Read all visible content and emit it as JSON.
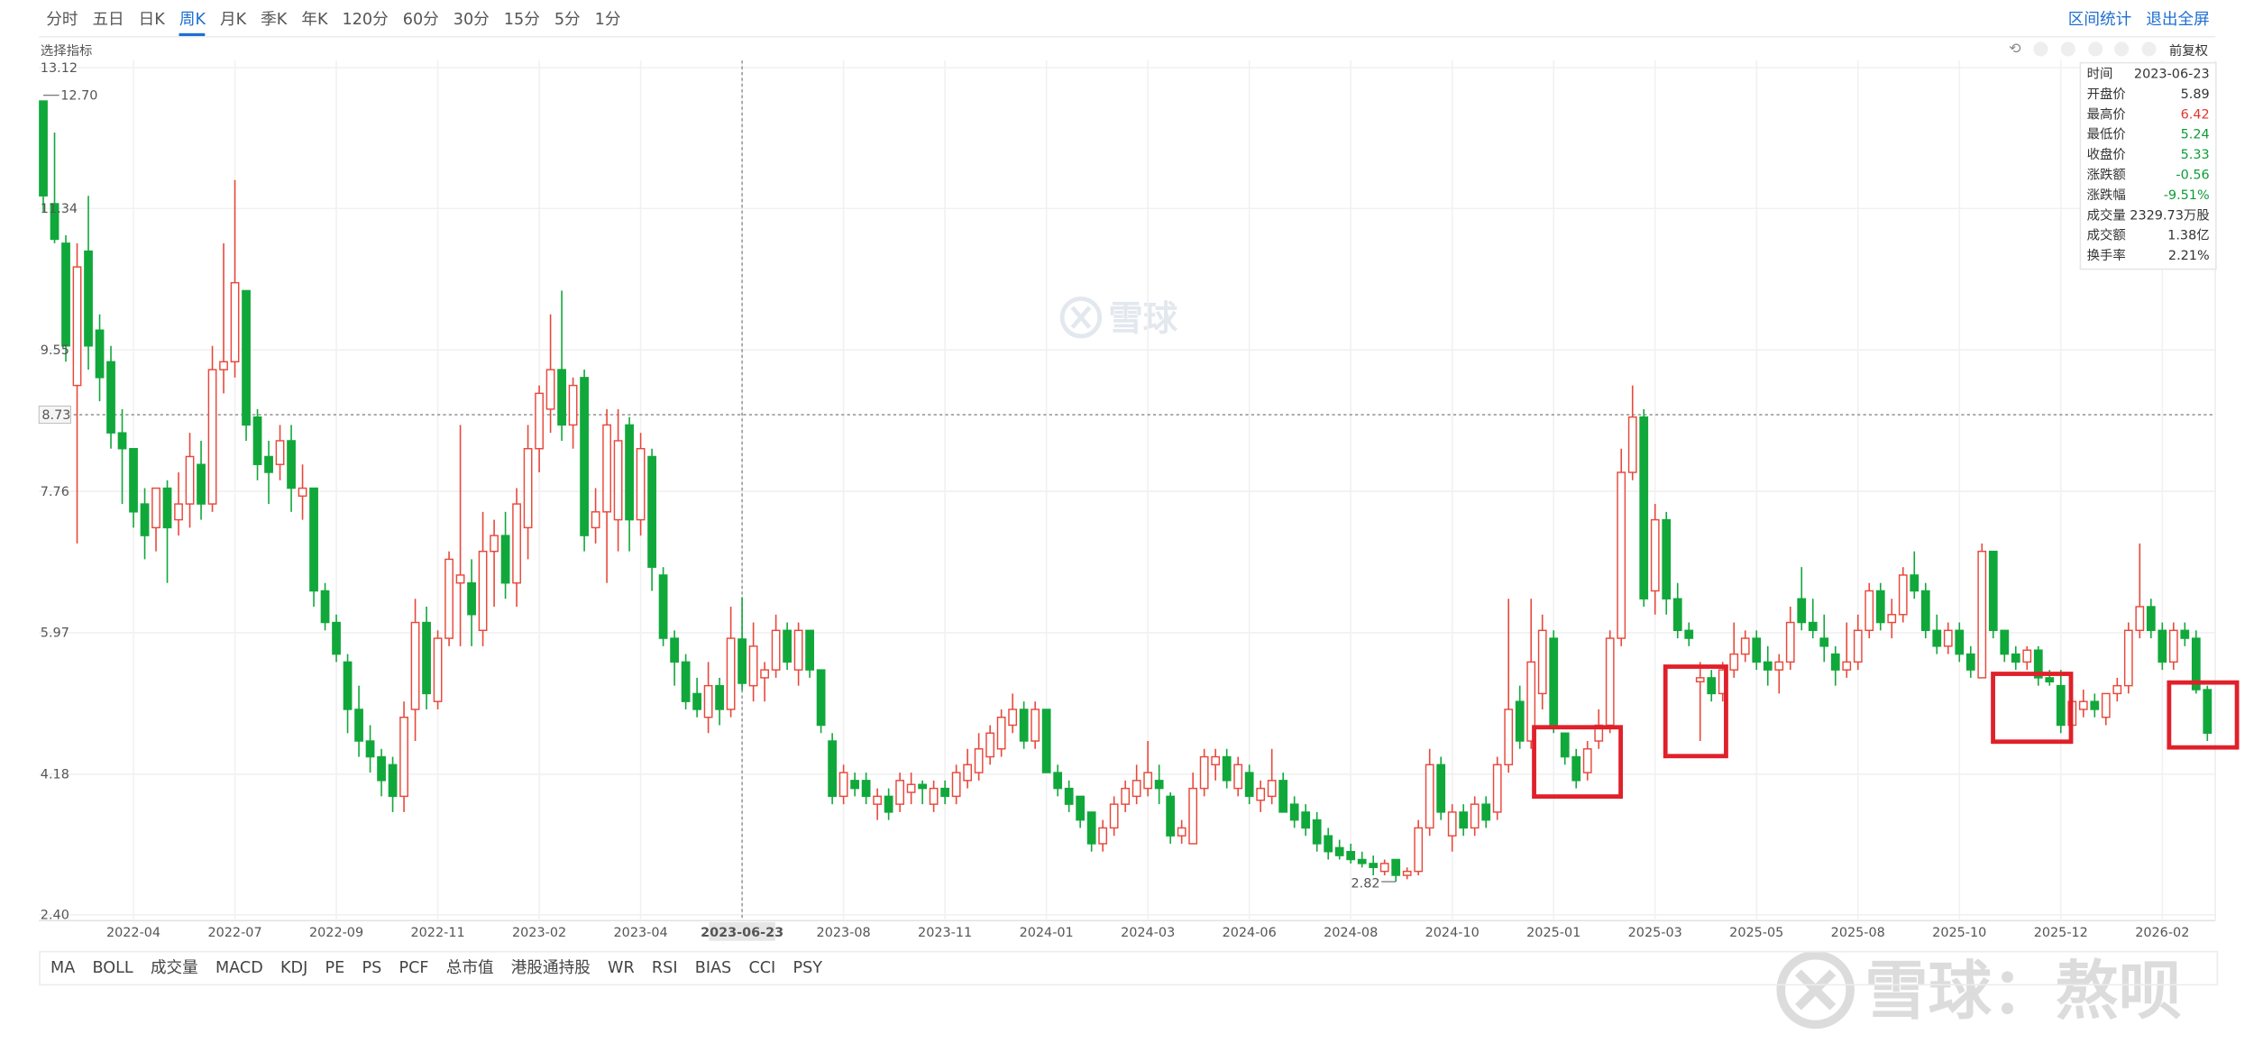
{
  "toolbar": {
    "tabs": [
      "分时",
      "五日",
      "日K",
      "周K",
      "月K",
      "季K",
      "年K",
      "120分",
      "60分",
      "30分",
      "15分",
      "5分",
      "1分"
    ],
    "active_tab": "周K",
    "actions": [
      "区间统计",
      "退出全屏"
    ]
  },
  "indicator_select": "选择指标",
  "adjust_mode": "前复权",
  "indicator_tabs": [
    "MA",
    "BOLL",
    "成交量",
    "MACD",
    "KDJ",
    "PE",
    "PS",
    "PCF",
    "总市值",
    "港股通持股",
    "WR",
    "RSI",
    "BIAS",
    "CCI",
    "PSY"
  ],
  "info_panel": {
    "rows": [
      {
        "label": "时间",
        "value": "2023-06-23",
        "color": "#333333"
      },
      {
        "label": "开盘价",
        "value": 5.89,
        "color": "#333333"
      },
      {
        "label": "最高价",
        "value": 6.42,
        "color": "#e0362b"
      },
      {
        "label": "最低价",
        "value": 5.24,
        "color": "#0d9b36"
      },
      {
        "label": "收盘价",
        "value": 5.33,
        "color": "#0d9b36"
      },
      {
        "label": "涨跌额",
        "value": -0.56,
        "color": "#0d9b36"
      },
      {
        "label": "涨跌幅",
        "value": "-9.51%",
        "color": "#0d9b36"
      },
      {
        "label": "成交量",
        "value": "2329.73万股",
        "color": "#333333"
      },
      {
        "label": "成交额",
        "value": "1.38亿",
        "color": "#333333"
      },
      {
        "label": "换手率",
        "value": "2.21%",
        "color": "#333333"
      }
    ]
  },
  "watermarks": [
    "雪球",
    "雪球：熬呗"
  ],
  "chart_data": {
    "type": "candlestick",
    "up_color": "#e8483b",
    "down_color": "#11a83b",
    "grid": true,
    "ylim": [
      2.4,
      13.12
    ],
    "yticks": [
      {
        "value": 2.4,
        "label": "2.40"
      },
      4.18,
      5.97,
      7.76,
      9.55,
      11.34,
      13.12
    ],
    "crosshair_y": 8.73,
    "annotations": [
      {
        "value": 12.7,
        "label": "12.70"
      },
      {
        "value": 2.82,
        "label": "2.82"
      }
    ],
    "categories": [
      null,
      null,
      null,
      null,
      null,
      null,
      null,
      null,
      "2022-04",
      null,
      null,
      null,
      null,
      null,
      null,
      null,
      null,
      "2022-07",
      null,
      null,
      null,
      null,
      null,
      null,
      null,
      null,
      "2022-09",
      null,
      null,
      null,
      null,
      null,
      null,
      null,
      null,
      "2022-11",
      null,
      null,
      null,
      null,
      null,
      null,
      null,
      null,
      "2023-02",
      null,
      null,
      null,
      null,
      null,
      null,
      null,
      null,
      "2023-04",
      null,
      null,
      null,
      null,
      null,
      null,
      null,
      null,
      "2023-06-23",
      null,
      null,
      null,
      null,
      null,
      null,
      null,
      null,
      "2023-08",
      null,
      null,
      null,
      null,
      null,
      null,
      null,
      null,
      "2023-11",
      null,
      null,
      null,
      null,
      null,
      null,
      null,
      null,
      "2024-01",
      null,
      null,
      null,
      null,
      null,
      null,
      null,
      null,
      "2024-03",
      null,
      null,
      null,
      null,
      null,
      null,
      null,
      null,
      "2024-06",
      null,
      null,
      null,
      null,
      null,
      null,
      null,
      null,
      "2024-08",
      null,
      null,
      null,
      null,
      null,
      null,
      null,
      null,
      "2024-10",
      null,
      null,
      null,
      null,
      null,
      null,
      null,
      null,
      "2025-01",
      null,
      null,
      null,
      null,
      null,
      null,
      null,
      null,
      "2025-03",
      null,
      null,
      null,
      null,
      null,
      null,
      null,
      null,
      "2025-05",
      null,
      null,
      null,
      null,
      null,
      null,
      null,
      null,
      "2025-08",
      null,
      null,
      null,
      null,
      null,
      null,
      null,
      null,
      "2025-10",
      null,
      null,
      null,
      null,
      null,
      null,
      null,
      null,
      "2025-12",
      null,
      null,
      null,
      null,
      null,
      null,
      null,
      null,
      "2026-02",
      null,
      null,
      null,
      null
    ],
    "ohlc": [
      [
        12.7,
        12.7,
        11.3,
        11.5
      ],
      [
        11.4,
        12.3,
        10.9,
        10.95
      ],
      [
        10.9,
        11.0,
        9.4,
        9.6
      ],
      [
        9.1,
        10.9,
        7.1,
        10.6
      ],
      [
        10.8,
        11.5,
        9.3,
        9.6
      ],
      [
        9.8,
        10.0,
        8.9,
        9.2
      ],
      [
        9.4,
        9.6,
        8.3,
        8.5
      ],
      [
        8.5,
        8.8,
        7.6,
        8.3
      ],
      [
        8.3,
        8.3,
        7.3,
        7.5
      ],
      [
        7.6,
        7.8,
        6.9,
        7.2
      ],
      [
        7.3,
        7.8,
        7.0,
        7.8
      ],
      [
        7.8,
        7.9,
        6.6,
        7.3
      ],
      [
        7.4,
        8.0,
        7.2,
        7.6
      ],
      [
        7.6,
        8.5,
        7.3,
        8.2
      ],
      [
        8.1,
        8.4,
        7.4,
        7.6
      ],
      [
        7.6,
        9.6,
        7.5,
        9.3
      ],
      [
        9.3,
        10.9,
        9.0,
        9.4
      ],
      [
        9.4,
        11.7,
        9.2,
        10.4
      ],
      [
        10.3,
        10.3,
        8.4,
        8.6
      ],
      [
        8.7,
        8.8,
        7.9,
        8.1
      ],
      [
        8.2,
        8.4,
        7.6,
        8.0
      ],
      [
        8.1,
        8.6,
        7.9,
        8.4
      ],
      [
        8.4,
        8.6,
        7.5,
        7.8
      ],
      [
        7.7,
        8.1,
        7.4,
        7.8
      ],
      [
        7.8,
        7.8,
        6.3,
        6.5
      ],
      [
        6.5,
        6.6,
        6.0,
        6.1
      ],
      [
        6.1,
        6.2,
        5.6,
        5.7
      ],
      [
        5.6,
        5.7,
        4.7,
        5.0
      ],
      [
        5.0,
        5.3,
        4.4,
        4.6
      ],
      [
        4.6,
        4.8,
        4.2,
        4.4
      ],
      [
        4.4,
        4.5,
        3.9,
        4.1
      ],
      [
        4.3,
        4.4,
        3.7,
        3.9
      ],
      [
        3.9,
        5.1,
        3.7,
        4.9
      ],
      [
        5.0,
        6.4,
        4.6,
        6.1
      ],
      [
        6.1,
        6.3,
        5.0,
        5.2
      ],
      [
        5.1,
        6.0,
        5.0,
        5.9
      ],
      [
        5.9,
        7.0,
        5.8,
        6.9
      ],
      [
        6.6,
        8.6,
        5.8,
        6.7
      ],
      [
        6.6,
        6.9,
        5.8,
        6.2
      ],
      [
        6.0,
        7.5,
        5.8,
        7.0
      ],
      [
        7.0,
        7.4,
        6.3,
        7.2
      ],
      [
        7.2,
        7.5,
        6.4,
        6.6
      ],
      [
        6.6,
        7.8,
        6.3,
        7.6
      ],
      [
        7.3,
        8.6,
        6.9,
        8.3
      ],
      [
        8.3,
        9.1,
        8.0,
        9.0
      ],
      [
        8.8,
        10.0,
        8.5,
        9.3
      ],
      [
        9.3,
        10.3,
        8.4,
        8.6
      ],
      [
        8.6,
        9.2,
        8.3,
        9.1
      ],
      [
        9.2,
        9.3,
        7.0,
        7.2
      ],
      [
        7.3,
        7.8,
        7.1,
        7.5
      ],
      [
        7.5,
        8.8,
        6.6,
        8.6
      ],
      [
        7.4,
        8.8,
        7.0,
        8.4
      ],
      [
        8.6,
        8.7,
        7.0,
        7.4
      ],
      [
        7.4,
        8.5,
        7.2,
        8.3
      ],
      [
        8.2,
        8.3,
        6.5,
        6.8
      ],
      [
        6.7,
        6.8,
        5.8,
        5.9
      ],
      [
        5.9,
        6.0,
        5.3,
        5.6
      ],
      [
        5.6,
        5.7,
        5.0,
        5.1
      ],
      [
        5.2,
        5.4,
        4.9,
        5.0
      ],
      [
        4.9,
        5.6,
        4.7,
        5.3
      ],
      [
        5.3,
        5.4,
        4.8,
        5.0
      ],
      [
        5.0,
        6.3,
        4.9,
        5.9
      ],
      [
        5.89,
        6.42,
        5.24,
        5.33
      ],
      [
        5.3,
        6.1,
        5.1,
        5.8
      ],
      [
        5.4,
        5.6,
        5.1,
        5.5
      ],
      [
        5.5,
        6.2,
        5.4,
        6.0
      ],
      [
        6.0,
        6.1,
        5.5,
        5.6
      ],
      [
        5.5,
        6.1,
        5.3,
        6.0
      ],
      [
        6.0,
        6.0,
        5.4,
        5.5
      ],
      [
        5.5,
        5.5,
        4.7,
        4.8
      ],
      [
        4.6,
        4.7,
        3.8,
        3.9
      ],
      [
        3.9,
        4.3,
        3.8,
        4.2
      ],
      [
        4.1,
        4.2,
        3.9,
        4.0
      ],
      [
        4.1,
        4.2,
        3.8,
        3.9
      ],
      [
        3.8,
        4.0,
        3.6,
        3.9
      ],
      [
        3.9,
        4.0,
        3.6,
        3.7
      ],
      [
        3.8,
        4.2,
        3.7,
        4.1
      ],
      [
        3.95,
        4.2,
        3.8,
        4.05
      ],
      [
        4.05,
        4.1,
        3.8,
        4.0
      ],
      [
        3.8,
        4.1,
        3.7,
        4.0
      ],
      [
        4.0,
        4.1,
        3.8,
        3.9
      ],
      [
        3.9,
        4.3,
        3.8,
        4.2
      ],
      [
        4.1,
        4.5,
        4.0,
        4.3
      ],
      [
        4.2,
        4.7,
        4.1,
        4.5
      ],
      [
        4.4,
        4.8,
        4.3,
        4.7
      ],
      [
        4.5,
        5.0,
        4.4,
        4.9
      ],
      [
        4.8,
        5.2,
        4.7,
        5.0
      ],
      [
        5.0,
        5.1,
        4.5,
        4.6
      ],
      [
        4.6,
        5.1,
        4.5,
        5.0
      ],
      [
        5.0,
        5.0,
        4.2,
        4.2
      ],
      [
        4.2,
        4.3,
        3.9,
        4.0
      ],
      [
        4.0,
        4.1,
        3.7,
        3.8
      ],
      [
        3.9,
        3.9,
        3.5,
        3.6
      ],
      [
        3.7,
        3.7,
        3.2,
        3.3
      ],
      [
        3.3,
        3.6,
        3.2,
        3.5
      ],
      [
        3.5,
        3.9,
        3.4,
        3.8
      ],
      [
        3.8,
        4.1,
        3.7,
        4.0
      ],
      [
        3.9,
        4.3,
        3.8,
        4.1
      ],
      [
        4.0,
        4.6,
        3.9,
        4.2
      ],
      [
        4.1,
        4.3,
        3.8,
        4.0
      ],
      [
        3.9,
        3.95,
        3.3,
        3.4
      ],
      [
        3.4,
        3.6,
        3.3,
        3.5
      ],
      [
        3.3,
        4.2,
        3.3,
        4.0
      ],
      [
        4.0,
        4.5,
        3.9,
        4.4
      ],
      [
        4.3,
        4.5,
        4.1,
        4.4
      ],
      [
        4.4,
        4.5,
        4.0,
        4.1
      ],
      [
        4.0,
        4.4,
        3.9,
        4.3
      ],
      [
        4.2,
        4.3,
        3.8,
        3.9
      ],
      [
        3.85,
        4.1,
        3.7,
        4.0
      ],
      [
        3.9,
        4.5,
        3.8,
        4.1
      ],
      [
        4.1,
        4.2,
        3.7,
        3.7
      ],
      [
        3.8,
        3.9,
        3.5,
        3.6
      ],
      [
        3.7,
        3.8,
        3.4,
        3.5
      ],
      [
        3.6,
        3.7,
        3.2,
        3.3
      ],
      [
        3.4,
        3.5,
        3.1,
        3.2
      ],
      [
        3.25,
        3.35,
        3.1,
        3.15
      ],
      [
        3.2,
        3.3,
        3.05,
        3.1
      ],
      [
        3.1,
        3.2,
        3.0,
        3.05
      ],
      [
        3.05,
        3.15,
        2.9,
        3.0
      ],
      [
        2.95,
        3.1,
        2.9,
        3.05
      ],
      [
        3.1,
        3.1,
        2.82,
        2.9
      ],
      [
        2.9,
        3.0,
        2.85,
        2.95
      ],
      [
        2.95,
        3.6,
        2.9,
        3.5
      ],
      [
        3.5,
        4.5,
        3.4,
        4.3
      ],
      [
        4.3,
        4.4,
        3.6,
        3.7
      ],
      [
        3.4,
        3.8,
        3.2,
        3.7
      ],
      [
        3.7,
        3.8,
        3.4,
        3.5
      ],
      [
        3.5,
        3.9,
        3.4,
        3.8
      ],
      [
        3.8,
        3.9,
        3.5,
        3.6
      ],
      [
        3.7,
        4.4,
        3.6,
        4.3
      ],
      [
        4.3,
        6.4,
        4.2,
        5.0
      ],
      [
        5.1,
        5.3,
        4.5,
        4.6
      ],
      [
        4.6,
        6.4,
        4.5,
        5.6
      ],
      [
        5.2,
        6.2,
        5.0,
        6.0
      ],
      [
        5.9,
        6.0,
        4.7,
        4.8
      ],
      [
        4.7,
        4.7,
        4.3,
        4.4
      ],
      [
        4.4,
        4.5,
        4.0,
        4.1
      ],
      [
        4.2,
        4.6,
        4.1,
        4.5
      ],
      [
        4.6,
        5.0,
        4.5,
        4.8
      ],
      [
        4.8,
        6.0,
        4.7,
        5.9
      ],
      [
        5.9,
        8.3,
        5.8,
        8.0
      ],
      [
        8.0,
        9.1,
        7.9,
        8.7
      ],
      [
        8.7,
        8.8,
        6.3,
        6.4
      ],
      [
        6.5,
        7.6,
        6.2,
        7.4
      ],
      [
        7.4,
        7.5,
        6.2,
        6.4
      ],
      [
        6.4,
        6.6,
        5.9,
        6.0
      ],
      [
        6.0,
        6.1,
        5.8,
        5.9
      ],
      [
        5.35,
        5.6,
        4.6,
        5.4
      ],
      [
        5.4,
        5.5,
        5.1,
        5.2
      ],
      [
        5.2,
        5.6,
        5.1,
        5.5
      ],
      [
        5.5,
        6.1,
        5.4,
        5.7
      ],
      [
        5.7,
        6.0,
        5.6,
        5.9
      ],
      [
        5.9,
        6.0,
        5.5,
        5.6
      ],
      [
        5.6,
        5.8,
        5.3,
        5.5
      ],
      [
        5.5,
        5.7,
        5.2,
        5.6
      ],
      [
        5.6,
        6.3,
        5.5,
        6.1
      ],
      [
        6.4,
        6.8,
        6.0,
        6.1
      ],
      [
        6.1,
        6.4,
        5.9,
        6.0
      ],
      [
        5.9,
        6.2,
        5.6,
        5.8
      ],
      [
        5.7,
        5.8,
        5.3,
        5.5
      ],
      [
        5.5,
        6.1,
        5.4,
        5.6
      ],
      [
        5.6,
        6.2,
        5.5,
        6.0
      ],
      [
        6.0,
        6.6,
        5.9,
        6.5
      ],
      [
        6.5,
        6.6,
        6.0,
        6.1
      ],
      [
        6.1,
        6.4,
        5.9,
        6.2
      ],
      [
        6.2,
        6.8,
        6.1,
        6.7
      ],
      [
        6.7,
        7.0,
        6.4,
        6.5
      ],
      [
        6.5,
        6.6,
        5.9,
        6.0
      ],
      [
        6.0,
        6.2,
        5.7,
        5.8
      ],
      [
        5.8,
        6.1,
        5.7,
        6.0
      ],
      [
        6.0,
        6.1,
        5.6,
        5.7
      ],
      [
        5.7,
        5.8,
        5.4,
        5.5
      ],
      [
        5.4,
        7.1,
        5.4,
        7.0
      ],
      [
        7.0,
        7.0,
        5.9,
        6.0
      ],
      [
        6.0,
        6.0,
        5.6,
        5.7
      ],
      [
        5.7,
        5.8,
        5.5,
        5.6
      ],
      [
        5.6,
        5.8,
        5.5,
        5.75
      ],
      [
        5.75,
        5.8,
        5.3,
        5.4
      ],
      [
        5.4,
        5.5,
        5.3,
        5.35
      ],
      [
        5.3,
        5.5,
        4.7,
        4.8
      ],
      [
        4.8,
        5.2,
        4.7,
        5.1
      ],
      [
        5.0,
        5.25,
        4.9,
        5.1
      ],
      [
        5.1,
        5.2,
        4.9,
        5.0
      ],
      [
        4.9,
        5.2,
        4.8,
        5.2
      ],
      [
        5.2,
        5.4,
        5.1,
        5.3
      ],
      [
        5.3,
        6.1,
        5.2,
        6.0
      ],
      [
        6.0,
        7.1,
        5.9,
        6.3
      ],
      [
        6.3,
        6.4,
        5.9,
        6.0
      ],
      [
        6.0,
        6.1,
        5.5,
        5.6
      ],
      [
        5.6,
        6.1,
        5.5,
        6.0
      ],
      [
        6.0,
        6.1,
        5.8,
        5.9
      ],
      [
        5.9,
        6.0,
        5.2,
        5.25
      ],
      [
        5.25,
        5.3,
        4.6,
        4.7
      ]
    ]
  }
}
